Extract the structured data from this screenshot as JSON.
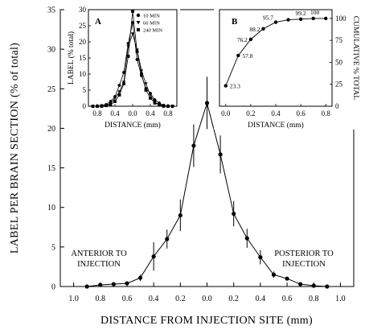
{
  "chart_data": [
    {
      "id": "main",
      "type": "line",
      "xlabel": "DISTANCE FROM INJECTION SITE (mm)",
      "ylabel": "LABEL PER BRAIN SECTION (% of total)",
      "xlim": [
        -1.1,
        1.1
      ],
      "ylim": [
        0,
        35
      ],
      "x_ticks": [
        -1.0,
        -0.8,
        -0.6,
        -0.4,
        -0.2,
        0.0,
        0.2,
        0.4,
        0.6,
        0.8,
        1.0
      ],
      "x_tick_labels": [
        "1.0",
        "0.8",
        "0.6",
        "0.4",
        "0.2",
        "0.0",
        "0.2",
        "0.4",
        "0.6",
        "0.8",
        "1.0"
      ],
      "y_ticks": [
        0,
        5,
        10,
        15,
        20,
        25,
        30,
        35
      ],
      "y_tick_labels": [
        "0",
        "5",
        "10",
        "15",
        "20",
        "25",
        "30",
        "35"
      ],
      "annotations": {
        "left": [
          "ANTERIOR TO",
          "INJECTION"
        ],
        "right": [
          "POSTERIOR TO",
          "INJECTION"
        ]
      },
      "series": [
        {
          "points": [
            {
              "x": -0.9,
              "y": 0.0,
              "err": 0
            },
            {
              "x": -0.8,
              "y": 0.2,
              "err": 0
            },
            {
              "x": -0.7,
              "y": 0.3,
              "err": 0
            },
            {
              "x": -0.6,
              "y": 0.4,
              "err": 0
            },
            {
              "x": -0.5,
              "y": 1.1,
              "err": 0.4
            },
            {
              "x": -0.4,
              "y": 3.8,
              "err": 1.8
            },
            {
              "x": -0.3,
              "y": 6.0,
              "err": 1.2
            },
            {
              "x": -0.2,
              "y": 9.0,
              "err": 2.0
            },
            {
              "x": -0.1,
              "y": 17.8,
              "err": 2.7
            },
            {
              "x": 0.0,
              "y": 23.2,
              "err": 3.3
            },
            {
              "x": 0.1,
              "y": 16.7,
              "err": 2.4
            },
            {
              "x": 0.2,
              "y": 9.2,
              "err": 1.6
            },
            {
              "x": 0.3,
              "y": 6.1,
              "err": 1.2
            },
            {
              "x": 0.4,
              "y": 3.7,
              "err": 0.9
            },
            {
              "x": 0.5,
              "y": 1.5,
              "err": 0.4
            },
            {
              "x": 0.6,
              "y": 1.0,
              "err": 0
            },
            {
              "x": 0.7,
              "y": 0.3,
              "err": 0
            },
            {
              "x": 0.8,
              "y": 0.1,
              "err": 0
            },
            {
              "x": 0.9,
              "y": 0.0,
              "err": 0
            }
          ]
        }
      ]
    },
    {
      "id": "inset-a",
      "type": "line",
      "panel_label": "A",
      "xlabel": "DISTANCE (mm)",
      "ylabel": "LABEL (% total)",
      "xlim": [
        -1.0,
        1.0
      ],
      "ylim": [
        0,
        30
      ],
      "x_ticks": [
        -0.8,
        -0.4,
        0.0,
        0.4,
        0.8
      ],
      "x_tick_labels": [
        "0.8",
        "0.4",
        "0.0",
        "0.4",
        "0.8"
      ],
      "y_ticks": [
        0,
        5,
        10,
        15,
        20,
        25,
        30
      ],
      "y_tick_labels": [
        "0",
        "5",
        "10",
        "15",
        "20",
        "25",
        "30"
      ],
      "legend": [
        "10 MIN",
        "60 MIN",
        "240 MIN"
      ],
      "series": [
        {
          "name": "10 MIN",
          "marker": "circle",
          "x": [
            -0.9,
            -0.8,
            -0.7,
            -0.6,
            -0.5,
            -0.4,
            -0.3,
            -0.2,
            -0.1,
            0.0,
            0.1,
            0.2,
            0.3,
            0.4,
            0.5,
            0.6,
            0.7,
            0.8,
            0.9
          ],
          "y": [
            0,
            0,
            0.2,
            0.5,
            1.5,
            3.0,
            6.5,
            10.5,
            19.5,
            26.0,
            14.5,
            9.5,
            5.5,
            4.0,
            2.0,
            1.0,
            0.3,
            0,
            0
          ]
        },
        {
          "name": "60 MIN",
          "marker": "triangle-down",
          "x": [
            -0.9,
            -0.8,
            -0.7,
            -0.6,
            -0.5,
            -0.4,
            -0.3,
            -0.2,
            -0.1,
            0.0,
            0.1,
            0.2,
            0.3,
            0.4,
            0.5,
            0.6,
            0.7,
            0.8,
            0.9
          ],
          "y": [
            0,
            0,
            0.2,
            0.3,
            0.8,
            2.5,
            4.5,
            7.5,
            18.5,
            22.5,
            17.5,
            11.0,
            7.0,
            3.5,
            1.2,
            0.5,
            0.2,
            0,
            0
          ]
        },
        {
          "name": "240 MIN",
          "marker": "square",
          "x": [
            -0.9,
            -0.8,
            -0.7,
            -0.6,
            -0.5,
            -0.4,
            -0.3,
            -0.2,
            -0.1,
            0.0,
            0.1,
            0.2,
            0.3,
            0.4,
            0.5,
            0.6,
            0.7,
            0.8,
            0.9
          ],
          "y": [
            0,
            0,
            0,
            0.2,
            0.5,
            1.5,
            3.5,
            7.0,
            15.5,
            29.5,
            17.0,
            10.0,
            5.0,
            2.5,
            1.0,
            0.5,
            0,
            0,
            0
          ]
        }
      ]
    },
    {
      "id": "inset-b",
      "type": "line",
      "panel_label": "B",
      "xlabel": "DISTANCE (mm)",
      "ylabel": "CUMULATIVE % TOTAL",
      "xlim": [
        -0.05,
        0.85
      ],
      "ylim": [
        0,
        110
      ],
      "x_ticks": [
        0.0,
        0.2,
        0.4,
        0.6,
        0.8
      ],
      "x_tick_labels": [
        "0.0",
        "0.2",
        "0.4",
        "0.6",
        "0.8"
      ],
      "y_ticks": [
        0,
        25,
        50,
        75,
        100
      ],
      "y_tick_labels": [
        "0",
        "25",
        "50",
        "75",
        "100"
      ],
      "series": [
        {
          "x": [
            0.0,
            0.1,
            0.2,
            0.3,
            0.4,
            0.5,
            0.6,
            0.7,
            0.8
          ],
          "y": [
            23.3,
            57.8,
            76.2,
            88.2,
            95.7,
            98.5,
            99.2,
            100,
            100
          ],
          "labels": [
            "23.3",
            "57.8",
            "76.2",
            "88.2",
            "95.7",
            "",
            "99.2",
            "100",
            ""
          ]
        }
      ]
    }
  ]
}
